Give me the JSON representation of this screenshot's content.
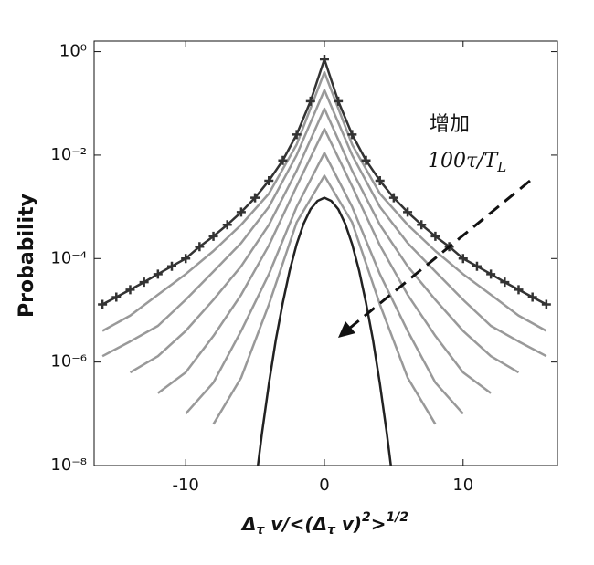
{
  "chart_data": {
    "type": "line",
    "ylabel": "Probability",
    "xlabel": [
      "Δ",
      "τ",
      " v/<(Δ",
      "τ",
      " v)",
      "2",
      ">",
      "1/2"
    ],
    "annotation": {
      "line1": "增加",
      "line2": "100τ/T",
      "subscript": "L"
    },
    "xlim": [
      -16.6,
      16.8
    ],
    "xticks": [
      -10,
      0,
      10
    ],
    "ylim": [
      1e-08,
      1.6
    ],
    "log_y": true,
    "yticks": [
      {
        "value": 1e-08,
        "label": "10⁻⁸"
      },
      {
        "value": 1e-06,
        "label": "10⁻⁶"
      },
      {
        "value": 0.0001,
        "label": "10⁻⁴"
      },
      {
        "value": 0.01,
        "label": "10⁻²"
      },
      {
        "value": 1,
        "label": "10⁰"
      }
    ],
    "series": [
      {
        "color": "#999999",
        "x": [
          -16,
          -14,
          -12,
          -10,
          -8,
          -6,
          -4,
          -2,
          0,
          2,
          4,
          6,
          8,
          10,
          12,
          14,
          16
        ],
        "values": [
          4e-06,
          7.9e-06,
          2e-05,
          5e-05,
          0.00014,
          0.00045,
          0.0018,
          0.016,
          0.4,
          0.016,
          0.0018,
          0.00045,
          0.00014,
          5e-05,
          2e-05,
          7.9e-06,
          4e-06
        ]
      },
      {
        "color": "#999999",
        "x": [
          -16,
          -14,
          -12,
          -10,
          -8,
          -6,
          -4,
          -2,
          0,
          2,
          4,
          6,
          8,
          10,
          12,
          14,
          16
        ],
        "values": [
          1.3e-06,
          2.5e-06,
          5e-06,
          1.6e-05,
          5.6e-05,
          0.0002,
          0.001,
          0.01,
          0.18,
          0.01,
          0.001,
          0.0002,
          5.6e-05,
          1.6e-05,
          5e-06,
          2.5e-06,
          1.3e-06
        ]
      },
      {
        "color": "#999999",
        "x": [
          -16,
          -14,
          -12,
          -10,
          -8,
          -6,
          -4,
          -2,
          0,
          2,
          4,
          6,
          8,
          10,
          12,
          14,
          16
        ],
        "values": [
          null,
          6.3e-07,
          1.3e-06,
          4e-06,
          1.6e-05,
          7.1e-05,
          0.00045,
          0.005,
          0.079,
          0.005,
          0.00045,
          7.1e-05,
          1.6e-05,
          4e-06,
          1.3e-06,
          6.3e-07,
          null
        ]
      },
      {
        "color": "#999999",
        "x": [
          -16,
          -14,
          -12,
          -10,
          -8,
          -6,
          -4,
          -2,
          0,
          2,
          4,
          6,
          8,
          10,
          12,
          14,
          16
        ],
        "values": [
          null,
          null,
          2.5e-07,
          6.3e-07,
          3.2e-06,
          2e-05,
          0.00018,
          0.0025,
          0.032,
          0.0025,
          0.00018,
          2e-05,
          3.2e-06,
          6.3e-07,
          2.5e-07,
          null,
          null
        ]
      },
      {
        "color": "#999999",
        "x": [
          -16,
          -14,
          -12,
          -10,
          -8,
          -6,
          -4,
          -2,
          0,
          2,
          4,
          6,
          8,
          10,
          12,
          14,
          16
        ],
        "values": [
          null,
          null,
          null,
          1e-07,
          4e-07,
          4e-06,
          5e-05,
          0.001,
          0.011,
          0.001,
          5e-05,
          4e-06,
          4e-07,
          1e-07,
          null,
          null,
          null
        ]
      },
      {
        "color": "#999999",
        "x": [
          -16,
          -14,
          -12,
          -10,
          -8,
          -6,
          -4,
          -2,
          0,
          2,
          4,
          6,
          8,
          10,
          12,
          14,
          16
        ],
        "values": [
          null,
          null,
          null,
          null,
          6.3e-08,
          5e-07,
          1.3e-05,
          0.0005,
          0.004,
          0.0005,
          1.3e-05,
          5e-07,
          6.3e-08,
          null,
          null,
          null,
          null
        ]
      },
      {
        "color": "#333333",
        "marker": "+",
        "x": [
          -16,
          -15,
          -14,
          -13,
          -12,
          -11,
          -10,
          -9,
          -8,
          -7,
          -6,
          -5,
          -4,
          -3,
          -2,
          -1,
          0,
          1,
          2,
          3,
          4,
          5,
          6,
          7,
          8,
          9,
          10,
          11,
          12,
          13,
          14,
          15,
          16
        ],
        "values": [
          1.3e-05,
          1.8e-05,
          2.5e-05,
          3.5e-05,
          5e-05,
          7.1e-05,
          0.0001,
          0.00017,
          0.00027,
          0.00045,
          0.00079,
          0.0015,
          0.0032,
          0.0079,
          0.025,
          0.11,
          0.71,
          0.11,
          0.025,
          0.0079,
          0.0032,
          0.0015,
          0.00079,
          0.00045,
          0.00027,
          0.00017,
          0.0001,
          7.1e-05,
          5e-05,
          3.5e-05,
          2.5e-05,
          1.8e-05,
          1.3e-05
        ]
      },
      {
        "color": "#222222",
        "x": [
          -5,
          -4.5,
          -4,
          -3.5,
          -3,
          -2.5,
          -2,
          -1.5,
          -1,
          -0.5,
          0,
          0.5,
          1,
          1.5,
          2,
          2.5,
          3,
          3.5,
          4,
          4.5,
          5
        ],
        "values": [
          3.6e-09,
          4.2e-08,
          3.8e-07,
          2.7e-06,
          1.4e-05,
          5.9e-05,
          0.00019,
          0.00047,
          0.0009,
          0.0013,
          0.0015,
          0.0013,
          0.0009,
          0.00047,
          0.00019,
          5.9e-05,
          1.4e-05,
          2.7e-06,
          3.8e-07,
          4.2e-08,
          3.6e-09
        ]
      }
    ]
  }
}
